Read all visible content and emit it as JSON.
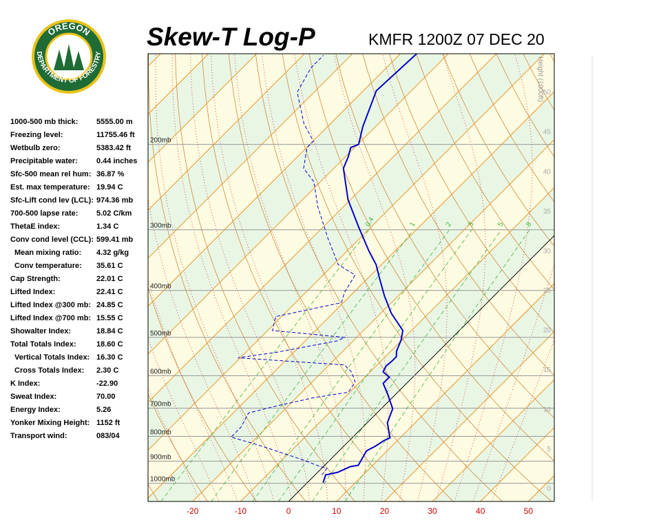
{
  "logo": {
    "top": "OREGON",
    "bottom": "DEPARTMENT OF FORESTRY"
  },
  "stats": [
    {
      "label": "1000-500 mb thick:",
      "value": "5555.00 m"
    },
    {
      "label": "Freezing level:",
      "value": "11755.46 ft"
    },
    {
      "label": "Wetbulb zero:",
      "value": "5383.42 ft"
    },
    {
      "label": "Precipitable water:",
      "value": "0.44 inches"
    },
    {
      "label": "Sfc-500 mean rel hum:",
      "value": "36.87 %"
    },
    {
      "label": "Est. max temperature:",
      "value": "19.94 C"
    },
    {
      "label": "Sfc-Lift cond lev (LCL):",
      "value": "974.36 mb"
    },
    {
      "label": "700-500 lapse rate:",
      "value": "5.02 C/km"
    },
    {
      "label": "ThetaE index:",
      "value": "1.34 C"
    },
    {
      "label": "Conv cond level (CCL):",
      "value": "599.41 mb"
    },
    {
      "label": "Mean mixing ratio:",
      "value": "4.32 g/kg"
    },
    {
      "label": "Conv temperature:",
      "value": "35.61 C"
    },
    {
      "label": "Cap Strength:",
      "value": "22.01 C"
    },
    {
      "label": "Lifted Index:",
      "value": "22.41 C"
    },
    {
      "label": "Lifted Index @300 mb:",
      "value": "24.85 C"
    },
    {
      "label": "Lifted Index @700 mb:",
      "value": "15.55 C"
    },
    {
      "label": "Showalter Index:",
      "value": "18.84 C"
    },
    {
      "label": "Total Totals Index:",
      "value": "18.60 C"
    },
    {
      "label": "Vertical Totals Index:",
      "value": "16.30 C"
    },
    {
      "label": "Cross Totals Index:",
      "value": "2.30 C"
    },
    {
      "label": "K Index:",
      "value": "-22.90"
    },
    {
      "label": "Sweat Index:",
      "value": "70.00"
    },
    {
      "label": "Energy Index:",
      "value": "5.26"
    },
    {
      "label": "Yonker Mixing Height:",
      "value": "1152 ft"
    },
    {
      "label": "Transport wind:",
      "value": "083/04"
    }
  ],
  "chart_data": {
    "type": "skewt",
    "title": "Skew-T Log-P",
    "subtitle": "KMFR 1200Z 07 DEC 20",
    "xlim": [
      -29.3,
      55.4
    ],
    "xticks": [
      -20,
      -10,
      0,
      10,
      20,
      30,
      40,
      50
    ],
    "ylim": [
      1090,
      130
    ],
    "log_y": true,
    "yticks": [
      {
        "value": 200,
        "label": "200mb"
      },
      {
        "value": 300,
        "label": "300mb"
      },
      {
        "value": 400,
        "label": "400mb"
      },
      {
        "value": 500,
        "label": "500mb"
      },
      {
        "value": 600,
        "label": "600mb"
      },
      {
        "value": 700,
        "label": "700mb"
      },
      {
        "value": 800,
        "label": "800mb"
      },
      {
        "value": 900,
        "label": "900mb"
      },
      {
        "value": 1000,
        "label": "1000mb"
      }
    ],
    "y2_label": "Height (1000ft)",
    "y2lim": [
      -1.7,
      54.8
    ],
    "y2ticks": [
      0,
      5,
      10,
      15,
      20,
      25,
      30,
      35,
      40,
      45,
      50
    ],
    "mixing_ratios": [
      0.4,
      1,
      2,
      3,
      5,
      8
    ],
    "series": [
      {
        "color": "#0000cc",
        "dashed": false,
        "pressure": [
          997,
          961,
          949,
          924,
          918,
          857,
          838,
          816,
          806,
          750,
          702,
          658,
          622,
          604,
          589,
          573,
          560,
          548,
          534,
          506,
          484,
          446,
          411,
          378,
          354,
          332,
          296,
          260,
          224,
          212,
          203,
          200,
          184,
          155,
          130
        ],
        "values": [
          3.3,
          2.2,
          4.2,
          5.6,
          7.0,
          5.7,
          6.6,
          7.2,
          7.9,
          4.2,
          2.4,
          -1.4,
          -4.9,
          -4.9,
          -7.3,
          -7.9,
          -7.7,
          -7.7,
          -8.8,
          -10.2,
          -11.8,
          -17.8,
          -22.8,
          -27.5,
          -31.1,
          -35.4,
          -42.6,
          -50.5,
          -58.0,
          -59.4,
          -60.8,
          -59.8,
          -62.6,
          -67.3,
          -66.6
        ]
      },
      {
        "color": "#0000cc",
        "dashed": true,
        "pressure": [
          961,
          931,
          924,
          895,
          857,
          830,
          803,
          765,
          716,
          693,
          666,
          649,
          618,
          589,
          570,
          551,
          537,
          508,
          500,
          484,
          453,
          424,
          404,
          372,
          354,
          311,
          268,
          239,
          224,
          203,
          197,
          181,
          156,
          139,
          131
        ],
        "values": [
          1.4,
          1.1,
          -0.6,
          -5.6,
          -13.2,
          -18.9,
          -25.4,
          -25.4,
          -26.8,
          -22.5,
          -16.4,
          -10.3,
          -11.0,
          -13.9,
          -16.8,
          -40.5,
          -33.7,
          -23.2,
          -22.5,
          -39.0,
          -41.2,
          -30.4,
          -31.9,
          -33.3,
          -39.0,
          -46.9,
          -55.5,
          -61.3,
          -66.3,
          -69.9,
          -69.9,
          -75.6,
          -83.5,
          -85.7,
          -85.7
        ]
      }
    ]
  }
}
